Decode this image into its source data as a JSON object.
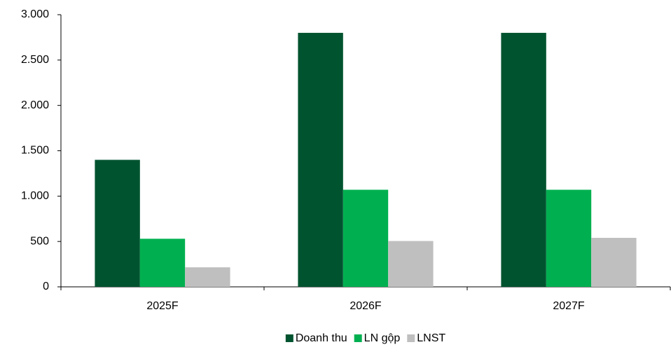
{
  "chart_data": {
    "type": "bar",
    "categories": [
      "2025F",
      "2026F",
      "2027F"
    ],
    "series": [
      {
        "name": "Doanh thu",
        "color": "#00532f",
        "values": [
          1400,
          2800,
          2800
        ]
      },
      {
        "name": "LN gộp",
        "color": "#00b050",
        "values": [
          530,
          1070,
          1070
        ]
      },
      {
        "name": "LNST",
        "color": "#bfbfbf",
        "values": [
          215,
          505,
          540
        ]
      }
    ],
    "ylim": [
      0,
      3000
    ],
    "yticks": [
      0,
      500,
      {
        "value": 1000,
        "label": "1.000"
      },
      {
        "value": 1500,
        "label": "1.500"
      },
      {
        "value": 2000,
        "label": "2.000"
      },
      {
        "value": 2500,
        "label": "2.500"
      },
      {
        "value": 3000,
        "label": "3.000"
      }
    ],
    "grid": false,
    "legend": "bottom"
  }
}
